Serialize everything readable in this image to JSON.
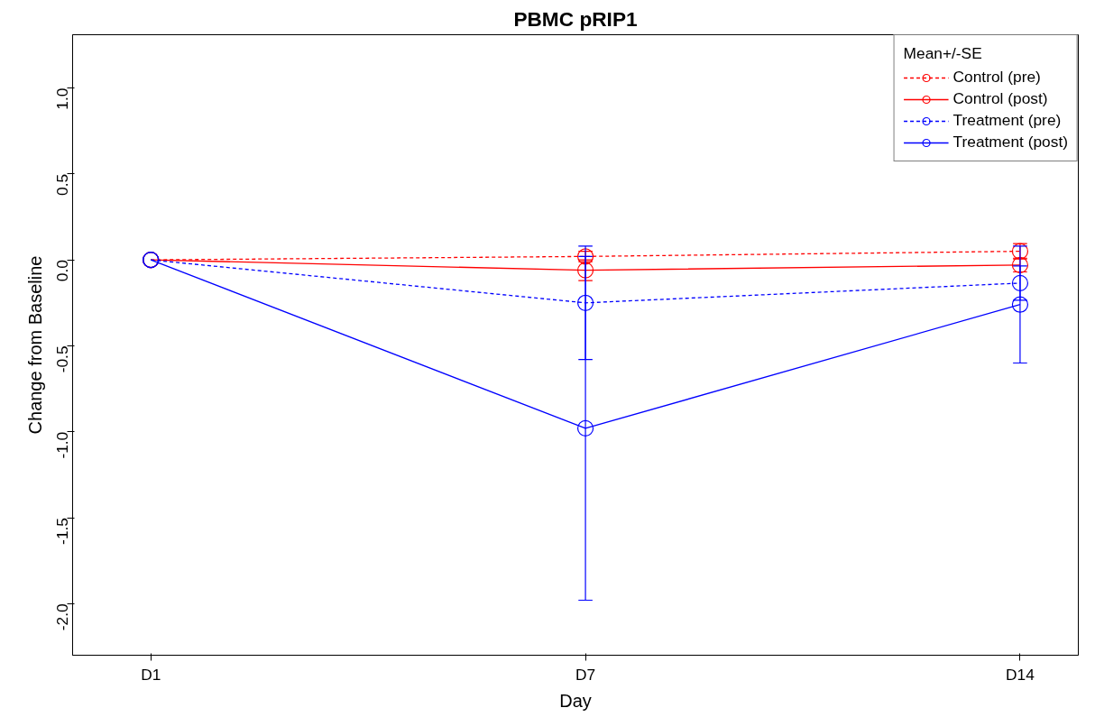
{
  "chart_data": {
    "type": "line",
    "title": "PBMC pRIP1",
    "xlabel": "Day",
    "ylabel": "Change from Baseline",
    "legend_title": "Mean+/-SE",
    "categories": [
      "D1",
      "D7",
      "D14"
    ],
    "ylim": [
      -2.3,
      1.31
    ],
    "yticks": [
      {
        "value": -2,
        "label": "-2.0"
      },
      -1.5,
      {
        "value": -1,
        "label": "-1.0"
      },
      -0.5,
      {
        "value": 0,
        "label": "0.0"
      },
      0.5,
      {
        "value": 1,
        "label": "1.0"
      }
    ],
    "grid": false,
    "legend": "top right",
    "marker": "circle",
    "series": [
      {
        "name": "Control (pre)",
        "color": "#ff0000",
        "line_style": "dashed",
        "values": [
          0,
          0.02,
          0.05
        ],
        "errors": [
          null,
          0.03,
          0.045
        ]
      },
      {
        "name": "Control (post)",
        "color": "#ff0000",
        "line_style": "solid",
        "values": [
          0,
          -0.06,
          -0.03
        ],
        "errors": [
          null,
          0.06,
          0.04
        ]
      },
      {
        "name": "Treatment (pre)",
        "color": "#0000ff",
        "line_style": "dashed",
        "values": [
          0,
          -0.25,
          -0.135
        ],
        "errors": [
          null,
          0.33,
          0.1
        ]
      },
      {
        "name": "Treatment (post)",
        "color": "#0000ff",
        "line_style": "solid",
        "values": [
          0,
          -0.98,
          -0.26
        ],
        "errors": [
          null,
          1.0,
          0.34
        ]
      }
    ]
  }
}
